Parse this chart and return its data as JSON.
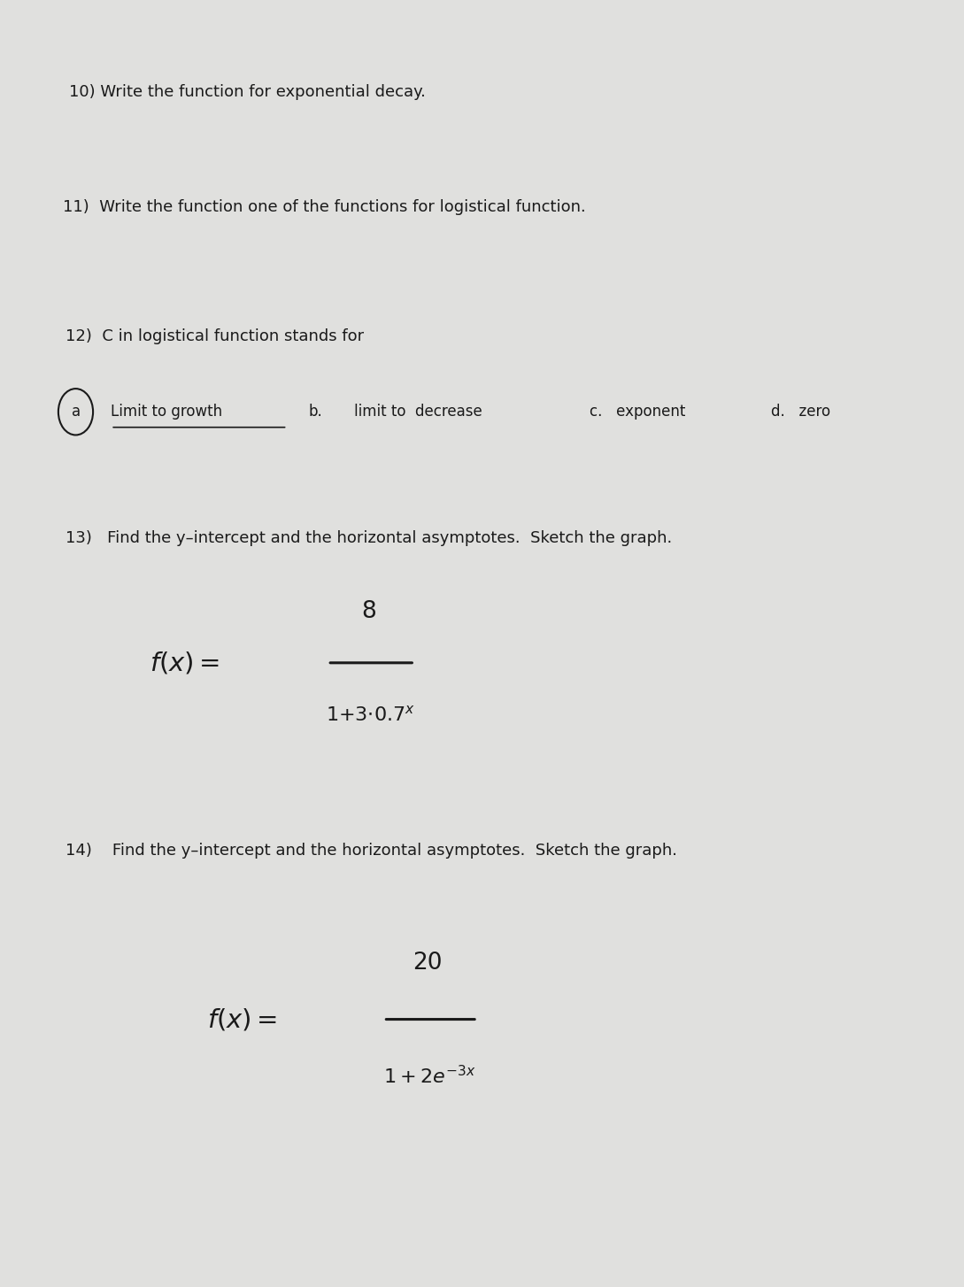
{
  "bg_color": "#e0e0de",
  "paper_color": "#efefec",
  "text_color": "#1a1a1a",
  "title_fontsize": 13,
  "body_fontsize": 12,
  "q10_text": "10) Write the function for exponential decay.",
  "q11_text": "11)  Write the function one of the functions for logistical function.",
  "q12_text": "12)  C in logistical function stands for",
  "q13_text": "13)   Find the y–intercept and the horizontal asymptotes.  Sketch the graph.",
  "q14_text": "14)    Find the y–intercept and the horizontal asymptotes.  Sketch the graph."
}
